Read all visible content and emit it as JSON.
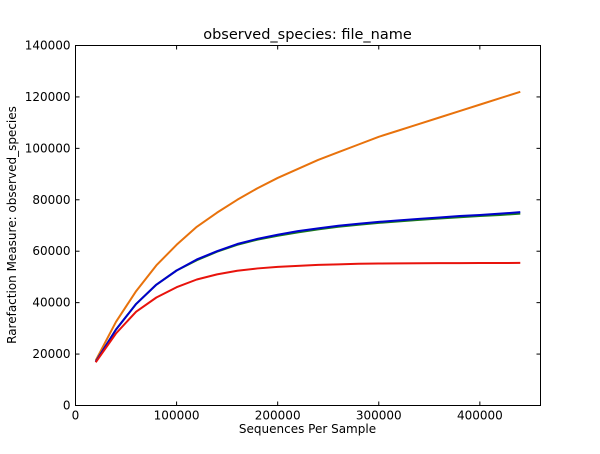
{
  "chart_data": {
    "type": "line",
    "title": "observed_species: file_name",
    "xlabel": "Sequences Per Sample",
    "ylabel": "Rarefaction Measure: observed_species",
    "xlim": [
      0,
      460000
    ],
    "ylim": [
      0,
      140000
    ],
    "x_ticks": [
      0,
      100000,
      200000,
      300000,
      400000
    ],
    "x_tick_labels": [
      "0",
      "100000",
      "200000",
      "300000",
      "400000"
    ],
    "y_ticks": [
      0,
      20000,
      40000,
      60000,
      80000,
      100000,
      120000,
      140000
    ],
    "y_tick_labels": [
      "0",
      "20000",
      "40000",
      "60000",
      "80000",
      "100000",
      "120000",
      "140000"
    ],
    "grid": false,
    "legend": "none",
    "x": [
      20000,
      40000,
      60000,
      80000,
      100000,
      120000,
      140000,
      160000,
      180000,
      200000,
      220000,
      240000,
      260000,
      280000,
      300000,
      320000,
      340000,
      360000,
      380000,
      400000,
      420000,
      440000
    ],
    "series": [
      {
        "color": "#e8720c",
        "values": [
          17500,
          32500,
          44500,
          54500,
          62500,
          69500,
          75000,
          80000,
          84500,
          88500,
          92000,
          95500,
          98500,
          101500,
          104500,
          107000,
          109500,
          112000,
          114500,
          117000,
          119500,
          122000
        ]
      },
      {
        "color": "#1a7a1a",
        "values": [
          17000,
          29500,
          39500,
          47000,
          52500,
          56500,
          59800,
          62500,
          64500,
          66000,
          67300,
          68500,
          69500,
          70300,
          71000,
          71600,
          72200,
          72700,
          73200,
          73700,
          74100,
          74600
        ]
      },
      {
        "color": "#0000cc",
        "values": [
          17000,
          29500,
          39500,
          47000,
          52500,
          56800,
          60000,
          62800,
          64800,
          66400,
          67800,
          68900,
          69900,
          70700,
          71400,
          72000,
          72600,
          73100,
          73700,
          74100,
          74600,
          75200
        ]
      },
      {
        "color": "#e8130c",
        "values": [
          16800,
          28000,
          36500,
          42000,
          46000,
          49000,
          51000,
          52400,
          53300,
          53900,
          54300,
          54700,
          54900,
          55100,
          55200,
          55250,
          55300,
          55350,
          55380,
          55400,
          55420,
          55450
        ]
      }
    ]
  }
}
